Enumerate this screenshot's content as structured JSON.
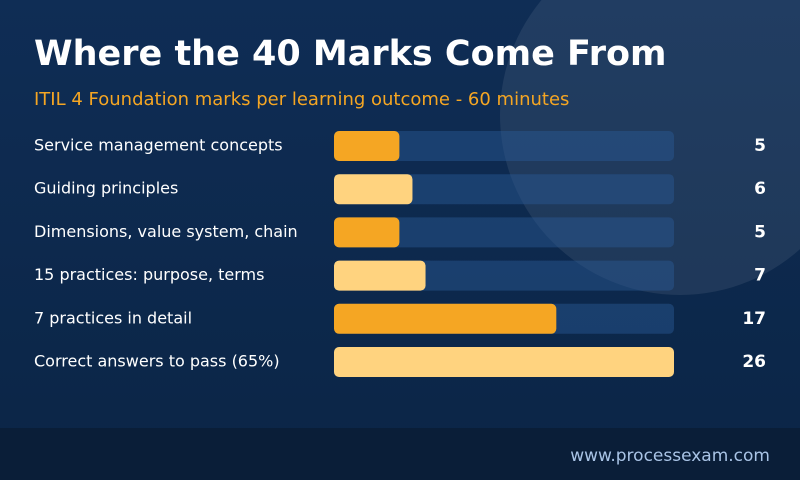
{
  "chart_data": {
    "type": "bar",
    "title": "Where the 40 Marks Come From",
    "subtitle": "ITIL 4 Foundation marks per learning outcome - 60 minutes",
    "categories": [
      "Service management concepts",
      "Guiding principles",
      "Dimensions, value system, chain",
      "15 practices: purpose, terms",
      "7 practices in detail",
      "Correct answers to pass (65%)"
    ],
    "values": [
      5,
      6,
      5,
      7,
      17,
      26
    ],
    "colors": [
      "#f5a623",
      "#ffd37f",
      "#f5a623",
      "#ffd37f",
      "#f5a623",
      "#ffd37f"
    ],
    "xlim": [
      0,
      26
    ]
  },
  "footer": "www.processexam.com"
}
